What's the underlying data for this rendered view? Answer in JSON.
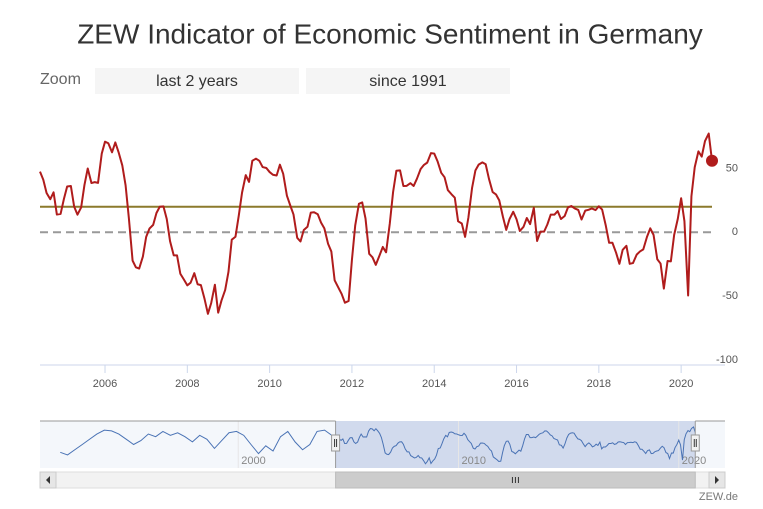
{
  "chart_data": [
    {
      "type": "line",
      "title": "ZEW Indicator of Economic Sentiment in Germany",
      "color": "#b01c1c",
      "marker_last": true,
      "xlim": [
        2004.42,
        2020.75
      ],
      "xticks": [
        2006,
        2008,
        2010,
        2012,
        2014,
        2016,
        2018,
        2020
      ],
      "ylim": [
        -104,
        88
      ],
      "yticks": [
        50,
        0,
        -50,
        -100
      ],
      "plot_lines": [
        {
          "value": 20,
          "color": "#8c7a2c"
        },
        {
          "value": 0,
          "color": "#999999",
          "dash": true
        }
      ],
      "x": [
        2004.42,
        2004.5,
        2004.58,
        2004.67,
        2004.75,
        2004.83,
        2004.92,
        2005,
        2005.08,
        2005.17,
        2005.25,
        2005.33,
        2005.42,
        2005.5,
        2005.58,
        2005.67,
        2005.75,
        2005.83,
        2005.92,
        2006,
        2006.08,
        2006.17,
        2006.25,
        2006.33,
        2006.42,
        2006.5,
        2006.58,
        2006.67,
        2006.75,
        2006.83,
        2006.92,
        2007,
        2007.08,
        2007.17,
        2007.25,
        2007.33,
        2007.42,
        2007.5,
        2007.58,
        2007.67,
        2007.75,
        2007.83,
        2007.92,
        2008,
        2008.08,
        2008.17,
        2008.25,
        2008.33,
        2008.42,
        2008.5,
        2008.58,
        2008.67,
        2008.75,
        2008.83,
        2008.92,
        2009,
        2009.08,
        2009.17,
        2009.25,
        2009.33,
        2009.42,
        2009.5,
        2009.58,
        2009.67,
        2009.75,
        2009.83,
        2009.92,
        2010,
        2010.08,
        2010.17,
        2010.25,
        2010.33,
        2010.42,
        2010.5,
        2010.58,
        2010.67,
        2010.75,
        2010.83,
        2010.92,
        2011,
        2011.08,
        2011.17,
        2011.25,
        2011.33,
        2011.42,
        2011.5,
        2011.58,
        2011.67,
        2011.75,
        2011.83,
        2011.92,
        2012,
        2012.08,
        2012.17,
        2012.25,
        2012.33,
        2012.42,
        2012.5,
        2012.58,
        2012.67,
        2012.75,
        2012.83,
        2012.92,
        2013,
        2013.08,
        2013.17,
        2013.25,
        2013.33,
        2013.42,
        2013.5,
        2013.58,
        2013.67,
        2013.75,
        2013.83,
        2013.92,
        2014,
        2014.08,
        2014.17,
        2014.25,
        2014.33,
        2014.42,
        2014.5,
        2014.58,
        2014.67,
        2014.75,
        2014.83,
        2014.92,
        2015,
        2015.08,
        2015.17,
        2015.25,
        2015.33,
        2015.42,
        2015.5,
        2015.58,
        2015.67,
        2015.75,
        2015.83,
        2015.92,
        2016,
        2016.08,
        2016.17,
        2016.25,
        2016.33,
        2016.42,
        2016.5,
        2016.58,
        2016.67,
        2016.75,
        2016.83,
        2016.92,
        2017,
        2017.08,
        2017.17,
        2017.25,
        2017.33,
        2017.42,
        2017.5,
        2017.58,
        2017.67,
        2017.75,
        2017.83,
        2017.92,
        2018,
        2018.08,
        2018.17,
        2018.25,
        2018.33,
        2018.42,
        2018.5,
        2018.58,
        2018.67,
        2018.75,
        2018.83,
        2018.92,
        2019,
        2019.08,
        2019.17,
        2019.25,
        2019.33,
        2019.42,
        2019.5,
        2019.58,
        2019.67,
        2019.75,
        2019.83,
        2019.92,
        2020,
        2020.08,
        2020.17,
        2020.25,
        2020.33,
        2020.42,
        2020.5,
        2020.58,
        2020.67,
        2020.75
      ],
      "values": [
        47.5,
        41.2,
        30.8,
        25.9,
        31.3,
        13.9,
        14.4,
        26.0,
        35.9,
        36.3,
        20.1,
        13.8,
        19.5,
        37.0,
        50.0,
        38.6,
        39.3,
        38.7,
        61.6,
        71.0,
        69.8,
        62.7,
        70.4,
        62.7,
        52.4,
        36.8,
        10.9,
        -22.2,
        -27.4,
        -28.4,
        -19.0,
        -3.6,
        2.9,
        5.8,
        15.1,
        20.0,
        20.3,
        10.4,
        -6.9,
        -18.1,
        -18.1,
        -32.5,
        -37.2,
        -41.6,
        -39.5,
        -32.0,
        -40.7,
        -41.4,
        -52.4,
        -63.9,
        -55.5,
        -41.1,
        -63.0,
        -53.5,
        -45.2,
        -31.0,
        -5.8,
        -3.5,
        13.0,
        31.1,
        44.8,
        39.5,
        56.1,
        57.7,
        56.0,
        51.1,
        50.4,
        47.2,
        45.1,
        44.5,
        53.0,
        45.8,
        28.7,
        21.2,
        14.0,
        -4.3,
        -7.2,
        1.8,
        4.3,
        15.4,
        15.7,
        14.1,
        7.6,
        3.1,
        -9.0,
        -15.1,
        -37.6,
        -43.3,
        -48.3,
        -55.2,
        -53.8,
        -21.6,
        5.4,
        22.3,
        23.4,
        10.8,
        -16.9,
        -19.6,
        -25.5,
        -18.2,
        -11.5,
        -15.7,
        6.9,
        31.5,
        48.2,
        48.5,
        36.3,
        36.4,
        38.5,
        36.3,
        42.0,
        49.6,
        52.8,
        54.6,
        62.0,
        61.7,
        55.7,
        46.6,
        43.2,
        33.1,
        29.8,
        27.1,
        8.6,
        6.9,
        -3.6,
        11.5,
        34.9,
        48.4,
        53.0,
        54.8,
        53.3,
        41.9,
        31.5,
        29.7,
        25.0,
        12.1,
        1.9,
        10.4,
        16.1,
        10.2,
        1.0,
        4.3,
        11.2,
        6.4,
        19.2,
        -6.8,
        0.5,
        0.5,
        6.2,
        13.8,
        13.8,
        16.6,
        10.4,
        12.8,
        19.5,
        20.6,
        18.6,
        17.5,
        10.0,
        17.0,
        17.6,
        18.7,
        17.4,
        20.4,
        17.8,
        5.1,
        -8.2,
        -8.2,
        -16.1,
        -24.7,
        -13.7,
        -10.6,
        -24.7,
        -24.1,
        -17.5,
        -15.0,
        -13.4,
        -3.6,
        3.1,
        -2.1,
        -21.1,
        -24.5,
        -44.1,
        -22.5,
        -22.8,
        -2.1,
        10.7,
        26.7,
        8.7,
        -49.5,
        28.2,
        51.0,
        63.4,
        59.3,
        71.5,
        77.4,
        56.1
      ]
    },
    {
      "type": "navigator",
      "color": "#4a73b5",
      "xlim": [
        1991,
        2022.1
      ],
      "xticks": [
        2000,
        2010,
        2020
      ],
      "ylim": [
        -80,
        100
      ],
      "x": [
        1991.92,
        1992.25,
        1992.58,
        1992.92,
        1993.25,
        1993.58,
        1993.92,
        1994.25,
        1994.58,
        1994.92,
        1995.25,
        1995.58,
        1995.92,
        1996.25,
        1996.58,
        1996.92,
        1997.25,
        1997.58,
        1997.92,
        1998.25,
        1998.58,
        1998.92,
        1999.25,
        1999.58,
        1999.92,
        2000.25,
        2000.58,
        2000.92,
        2001.25,
        2001.58,
        2001.92,
        2002.25,
        2002.58,
        2002.92,
        2003.25,
        2003.58,
        2003.92,
        2004.25
      ],
      "values": [
        -20,
        -30,
        -10,
        10,
        30,
        50,
        65,
        62,
        50,
        30,
        10,
        25,
        50,
        40,
        60,
        45,
        55,
        40,
        20,
        45,
        30,
        -5,
        25,
        55,
        60,
        45,
        10,
        -25,
        5,
        -15,
        40,
        60,
        20,
        -10,
        10,
        60,
        65,
        45
      ]
    }
  ],
  "zoom": {
    "label": "Zoom",
    "buttons": [
      "last 2 years",
      "since 1991"
    ]
  },
  "credit": "ZEW.de"
}
